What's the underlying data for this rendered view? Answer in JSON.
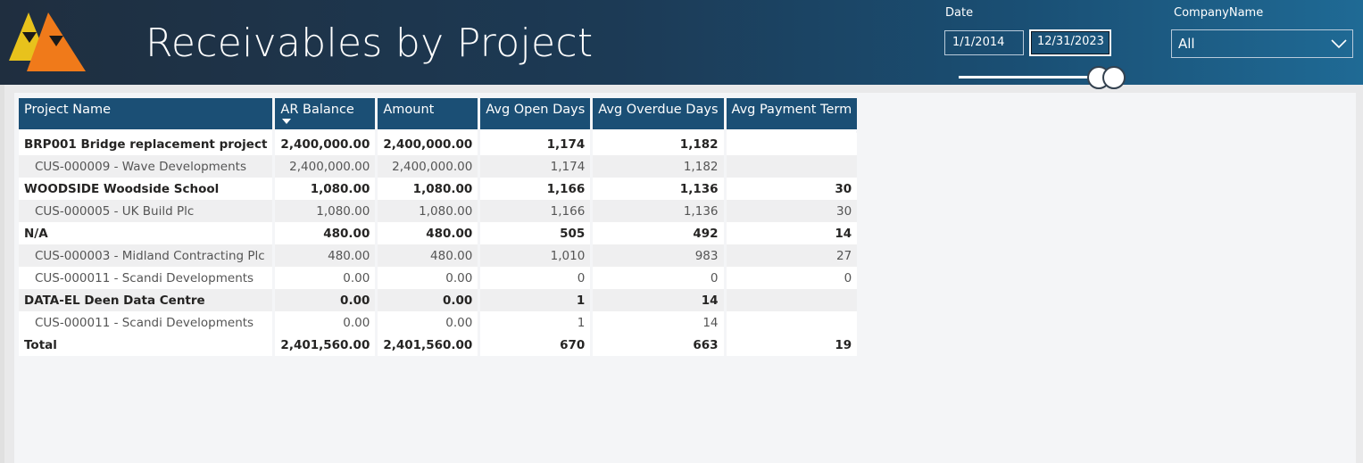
{
  "header": {
    "title": "Receivables by Project"
  },
  "filters": {
    "date_label": "Date",
    "date_start": "1/1/2014",
    "date_end": "12/31/2023",
    "company_label": "CompanyName",
    "company_value": "All"
  },
  "table": {
    "columns": [
      "Project Name",
      "AR Balance",
      "Amount",
      "Avg Open Days",
      "Avg Overdue Days",
      "Avg Payment Term"
    ],
    "sorted_column": "AR Balance",
    "rows": [
      {
        "kind": "parent",
        "band": "white",
        "cells": [
          "BRP001 Bridge replacement project",
          "2,400,000.00",
          "2,400,000.00",
          "1,174",
          "1,182",
          ""
        ]
      },
      {
        "kind": "child",
        "band": "grey",
        "cells": [
          "CUS-000009 - Wave Developments",
          "2,400,000.00",
          "2,400,000.00",
          "1,174",
          "1,182",
          ""
        ]
      },
      {
        "kind": "parent",
        "band": "white",
        "cells": [
          "WOODSIDE Woodside School",
          "1,080.00",
          "1,080.00",
          "1,166",
          "1,136",
          "30"
        ]
      },
      {
        "kind": "child",
        "band": "grey",
        "cells": [
          "CUS-000005 - UK Build Plc",
          "1,080.00",
          "1,080.00",
          "1,166",
          "1,136",
          "30"
        ]
      },
      {
        "kind": "parent",
        "band": "white",
        "cells": [
          "N/A",
          "480.00",
          "480.00",
          "505",
          "492",
          "14"
        ]
      },
      {
        "kind": "child",
        "band": "grey",
        "cells": [
          "CUS-000003 - Midland Contracting Plc",
          "480.00",
          "480.00",
          "1,010",
          "983",
          "27"
        ]
      },
      {
        "kind": "child",
        "band": "white",
        "cells": [
          "CUS-000011 - Scandi Developments",
          "0.00",
          "0.00",
          "0",
          "0",
          "0"
        ]
      },
      {
        "kind": "parent",
        "band": "grey",
        "cells": [
          "DATA-EL Deen Data Centre",
          "0.00",
          "0.00",
          "1",
          "14",
          ""
        ]
      },
      {
        "kind": "child",
        "band": "white",
        "cells": [
          "CUS-000011 - Scandi Developments",
          "0.00",
          "0.00",
          "1",
          "14",
          ""
        ]
      },
      {
        "kind": "total",
        "band": "white",
        "cells": [
          "Total",
          "2,401,560.00",
          "2,401,560.00",
          "670",
          "663",
          "19"
        ]
      }
    ]
  },
  "colors": {
    "header_dark": "#1f2e3f",
    "header_blue": "#1f6a95",
    "table_header": "#1b4f75",
    "logo_yellow": "#e8c21c",
    "logo_orange": "#f07a1a"
  },
  "icons": [
    "logo-icon",
    "chevron-down-icon",
    "sort-descending-icon"
  ]
}
